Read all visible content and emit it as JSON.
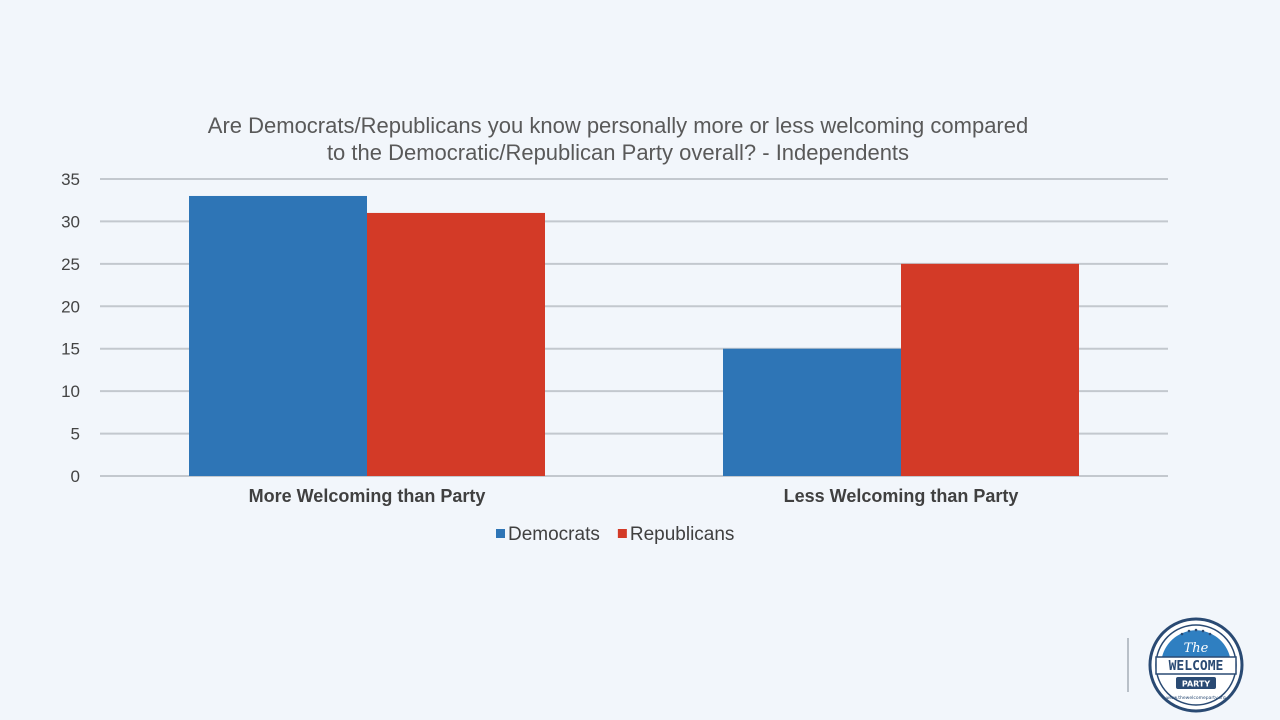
{
  "chart_data": {
    "type": "bar",
    "title": "Are Democrats/Republicans you know personally more or less welcoming compared\nto the Democratic/Republican Party overall? - Independents",
    "categories": [
      "More Welcoming than Party",
      "Less Welcoming than Party"
    ],
    "series": [
      {
        "name": "Democrats",
        "values": [
          33,
          15
        ],
        "color": "#2e75b6"
      },
      {
        "name": "Republicans",
        "values": [
          31,
          25
        ],
        "color": "#d33a27"
      }
    ],
    "ylim": [
      0,
      35
    ],
    "yticks": [
      0,
      5,
      10,
      15,
      20,
      25,
      30,
      35
    ],
    "grid": true,
    "legend_position": "bottom",
    "xlabel": "",
    "ylabel": ""
  },
  "logo": {
    "line1": "The",
    "line2": "WELCOME",
    "line3": "PARTY",
    "ring_text": "www.thewelcomeparty.org"
  }
}
